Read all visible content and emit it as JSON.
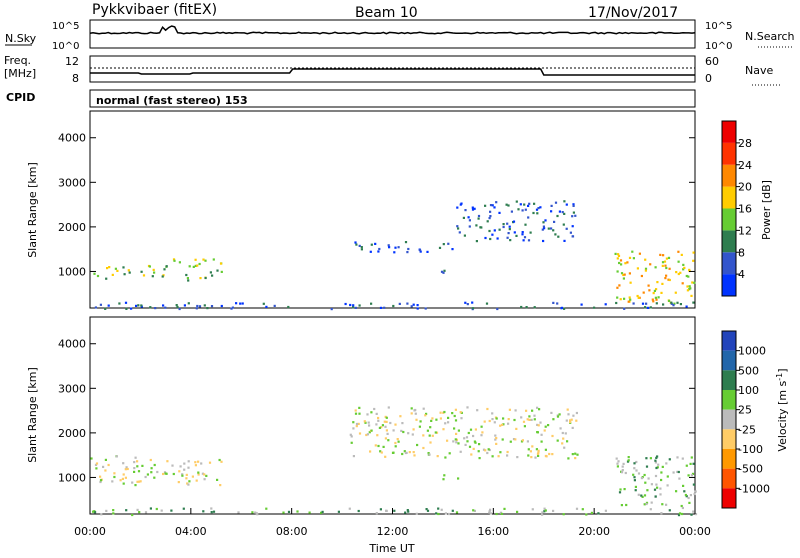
{
  "header": {
    "station": "Pykkvibaer (fitEX)",
    "beam": "Beam 10",
    "date": "17/Nov/2017"
  },
  "nsky_panel": {
    "left_label": "N.Sky",
    "left_ticks": [
      "10^5",
      "10^0"
    ],
    "right_label": "N.Search",
    "right_ticks": [
      "10^5",
      "10^0"
    ]
  },
  "freq_panel": {
    "left_label_1": "Freq.",
    "left_label_2": "[MHz]",
    "left_ticks": [
      "12",
      "8"
    ],
    "right_label": "Nave",
    "right_ticks": [
      "60",
      "0"
    ]
  },
  "cpid": {
    "label": "CPID",
    "value": "normal (fast stereo) 153"
  },
  "chart_data": [
    {
      "type": "heatmap",
      "name": "power",
      "ylabel": "Slant Range [km]",
      "ylim": [
        180,
        4600
      ],
      "yticks": [
        "1000",
        "2000",
        "3000",
        "4000"
      ],
      "colorbar": {
        "label": "Power [dB]",
        "ticks": [
          "4",
          "8",
          "12",
          "16",
          "20",
          "24",
          "28"
        ],
        "colors": [
          "#0033ff",
          "#3355cc",
          "#2e7d4f",
          "#66cc33",
          "#ffcc00",
          "#ff8800",
          "#ff3300",
          "#ee0000"
        ]
      },
      "echo_regions": [
        {
          "t0": 0.0,
          "t1": 3.2,
          "r0": 850,
          "r1": 1150,
          "level": 3
        },
        {
          "t0": 3.2,
          "t1": 5.2,
          "r0": 820,
          "r1": 1300,
          "level": 3
        },
        {
          "t0": 10.3,
          "t1": 14.5,
          "r0": 1450,
          "r1": 1700,
          "level": 1
        },
        {
          "t0": 14.5,
          "t1": 19.3,
          "r0": 1700,
          "r1": 2600,
          "level": 1
        },
        {
          "t0": 13.9,
          "t1": 14.6,
          "r0": 900,
          "r1": 1100,
          "level": 1
        },
        {
          "t0": 20.8,
          "t1": 24.0,
          "r0": 300,
          "r1": 1500,
          "level": 4
        },
        {
          "t0": 0.0,
          "t1": 24.0,
          "r0": 180,
          "r1": 330,
          "level": 1
        }
      ]
    },
    {
      "type": "heatmap",
      "name": "velocity",
      "ylabel": "Slant Range [km]",
      "xlabel": "Time UT",
      "ylim": [
        180,
        4600
      ],
      "yticks": [
        "1000",
        "2000",
        "3000",
        "4000"
      ],
      "xticks": [
        "00:00",
        "04:00",
        "08:00",
        "12:00",
        "16:00",
        "20:00",
        "00:00"
      ],
      "colorbar": {
        "label": "Velocity [m s",
        "label_sup": "-1",
        "label_end": "]",
        "ticks": [
          "1000",
          "500",
          "100",
          "25",
          "-25",
          "-100",
          "-500",
          "-1000"
        ],
        "colors": [
          "#2244bb",
          "#2266aa",
          "#2e7d4f",
          "#66cc33",
          "#bbbbbb",
          "#ffcc66",
          "#ff9900",
          "#ff5500",
          "#ee0000"
        ]
      },
      "echo_regions": [
        {
          "t0": 0.0,
          "t1": 5.2,
          "r0": 850,
          "r1": 1500,
          "level": 4
        },
        {
          "t0": 10.3,
          "t1": 19.3,
          "r0": 1450,
          "r1": 2600,
          "level": 4
        },
        {
          "t0": 13.9,
          "t1": 14.6,
          "r0": 900,
          "r1": 1100,
          "level": 2
        },
        {
          "t0": 20.8,
          "t1": 24.0,
          "r0": 300,
          "r1": 1500,
          "level": 3
        },
        {
          "t0": 0.0,
          "t1": 24.0,
          "r0": 180,
          "r1": 330,
          "level": 3
        }
      ]
    }
  ]
}
